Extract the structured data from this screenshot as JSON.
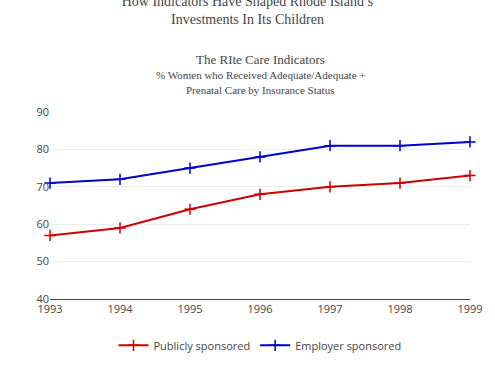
{
  "chart_data": {
    "type": "line",
    "title": "How Indicators Have Shaped Rhode Island’s\nInvestments In Its Children",
    "subtitle": [
      "The RIte Care Indicators",
      "% Women who Received Adequate/Adequate +",
      "Prenatal Care by Insurance Status"
    ],
    "x": [
      1993,
      1994,
      1995,
      1996,
      1997,
      1998,
      1999
    ],
    "series": [
      {
        "name": "Publicly sponsored",
        "color": "#cc0000",
        "marker": "plus",
        "values": [
          57,
          59,
          64,
          68,
          70,
          71,
          73
        ]
      },
      {
        "name": "Employer sponsored",
        "color": "#0000cc",
        "marker": "plus",
        "values": [
          71,
          72,
          75,
          78,
          81,
          81,
          82
        ]
      }
    ],
    "xlim": [
      1993,
      1999
    ],
    "xticks": [
      1993,
      1994,
      1995,
      1996,
      1997,
      1998,
      1999
    ],
    "ylim": [
      40,
      90
    ],
    "yticks": [
      40,
      50,
      60,
      70,
      80,
      90
    ],
    "grid": true,
    "legend": "bottom"
  }
}
